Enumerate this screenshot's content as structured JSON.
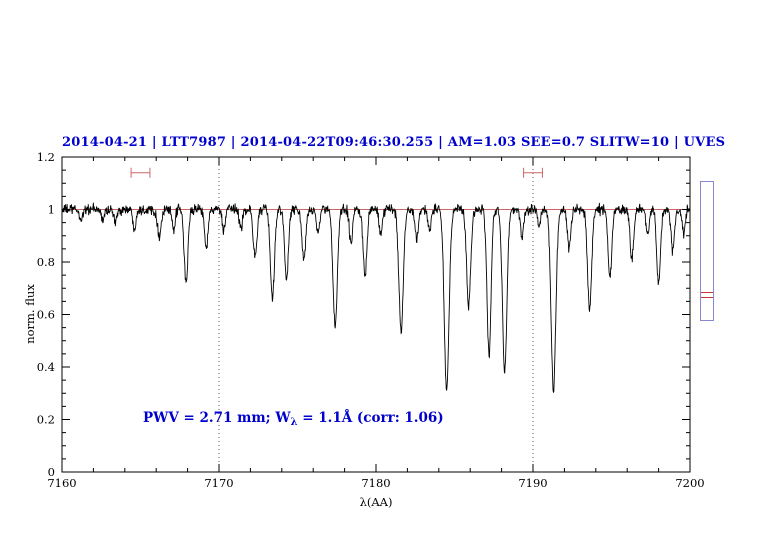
{
  "header": {
    "title": "2014-04-21 | LTT7987 | 2014-04-22T09:46:30.255 | AM=1.03 SEE=0.7 SLITW=10 | UVES"
  },
  "annotation": {
    "pre": "PWV = 2.71 mm; W",
    "sub": "λ",
    "post": " = 1.1Å (corr: 1.06)"
  },
  "colors": {
    "title_blue": "#0000cd",
    "spectrum": "#000000",
    "continuum_red": "#cc6666",
    "marker_red": "#cc6666",
    "dotted_line": "#555555",
    "axis": "#000000",
    "panel_blue": "#8888cc",
    "panel_red": "#cc3333"
  },
  "chart_data": {
    "type": "line",
    "title": "2014-04-21 | LTT7987 | 2014-04-22T09:46:30.255 | AM=1.03 SEE=0.7 SLITW=10 | UVES",
    "xlabel": "λ(AA)",
    "ylabel": "norm. flux",
    "xlim": [
      7160,
      7200
    ],
    "ylim": [
      0,
      1.2
    ],
    "xticks": [
      7160,
      7170,
      7180,
      7190,
      7200
    ],
    "xtick_labels": [
      "7160",
      "7170",
      "7180",
      "7190",
      "7200"
    ],
    "x_minor_step": 2,
    "yticks": [
      0,
      0.2,
      0.4,
      0.6,
      0.8,
      1,
      1.2
    ],
    "ytick_labels": [
      "0",
      "0.2",
      "0.4",
      "0.6",
      "0.8",
      "1",
      "1.2"
    ],
    "y_minor_step": 0.05,
    "grid": false,
    "legend": null,
    "dotted_vlines": [
      7170,
      7190
    ],
    "continuum_line_y": 1.0,
    "noise_sigma": 0.01,
    "sample_step": 0.025,
    "top_markers": [
      {
        "x_center": 7165.0,
        "x_halfwidth": 0.6,
        "y": 1.14
      },
      {
        "x_center": 7190.0,
        "x_halfwidth": 0.6,
        "y": 1.14
      }
    ],
    "annotation_text": "PWV = 2.71 mm; W_λ = 1.1Å (corr: 1.06)",
    "annotation_xy": [
      7165.2,
      0.22
    ],
    "absorption_lines": [
      [
        7161.2,
        0.04,
        0.1
      ],
      [
        7162.6,
        0.04,
        0.1
      ],
      [
        7163.4,
        0.05,
        0.1
      ],
      [
        7164.6,
        0.07,
        0.1
      ],
      [
        7166.2,
        0.1,
        0.12
      ],
      [
        7167.1,
        0.08,
        0.1
      ],
      [
        7167.9,
        0.28,
        0.12
      ],
      [
        7169.2,
        0.14,
        0.11
      ],
      [
        7170.3,
        0.08,
        0.1
      ],
      [
        7171.4,
        0.07,
        0.1
      ],
      [
        7172.3,
        0.18,
        0.12
      ],
      [
        7173.4,
        0.34,
        0.13
      ],
      [
        7174.3,
        0.27,
        0.12
      ],
      [
        7175.4,
        0.2,
        0.12
      ],
      [
        7176.3,
        0.09,
        0.1
      ],
      [
        7177.4,
        0.44,
        0.14
      ],
      [
        7178.4,
        0.13,
        0.1
      ],
      [
        7179.3,
        0.25,
        0.12
      ],
      [
        7180.3,
        0.1,
        0.1
      ],
      [
        7181.6,
        0.46,
        0.14
      ],
      [
        7182.6,
        0.11,
        0.1
      ],
      [
        7183.4,
        0.08,
        0.1
      ],
      [
        7184.5,
        0.69,
        0.15
      ],
      [
        7185.9,
        0.37,
        0.13
      ],
      [
        7187.2,
        0.55,
        0.13
      ],
      [
        7188.2,
        0.62,
        0.14
      ],
      [
        7189.3,
        0.1,
        0.1
      ],
      [
        7190.4,
        0.06,
        0.1
      ],
      [
        7191.3,
        0.68,
        0.15
      ],
      [
        7192.3,
        0.15,
        0.11
      ],
      [
        7193.6,
        0.38,
        0.13
      ],
      [
        7194.9,
        0.26,
        0.12
      ],
      [
        7196.3,
        0.18,
        0.12
      ],
      [
        7197.3,
        0.1,
        0.1
      ],
      [
        7198.0,
        0.28,
        0.12
      ],
      [
        7198.9,
        0.16,
        0.11
      ],
      [
        7199.6,
        0.09,
        0.1
      ]
    ]
  }
}
